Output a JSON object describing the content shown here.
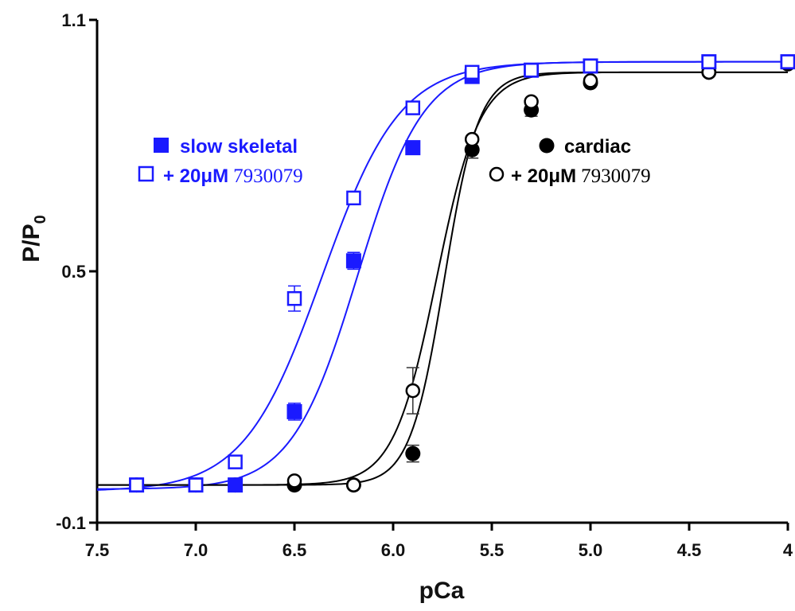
{
  "chart_data": {
    "type": "scatter",
    "xlabel": "pCa",
    "ylabel_main": "P/P",
    "ylabel_sub": "0",
    "xlim": [
      7.5,
      4.0
    ],
    "ylim": [
      -0.1,
      1.1
    ],
    "x_reversed": true,
    "x_ticks": [
      {
        "value": 7.5,
        "label": "7.5"
      },
      {
        "value": 7.0,
        "label": "7.0"
      },
      {
        "value": 6.5,
        "label": "6.5"
      },
      {
        "value": 6.0,
        "label": "6.0"
      },
      {
        "value": 5.5,
        "label": "5.5"
      },
      {
        "value": 5.0,
        "label": "5.0"
      },
      {
        "value": 4.5,
        "label": "4.5"
      },
      {
        "value": 4.0,
        "label": "4"
      }
    ],
    "y_ticks": [
      {
        "value": 1.1,
        "label": "1.1"
      },
      {
        "value": 0.5,
        "label": "0.5"
      },
      {
        "value": -0.1,
        "label": "-0.1"
      }
    ],
    "grid": false,
    "series": [
      {
        "name": "slow skeletal",
        "marker": "filled-square",
        "color": "#1a1aff",
        "x": [
          7.3,
          7.0,
          6.8,
          6.5,
          6.2,
          5.9,
          5.6,
          5.3,
          5.0,
          4.4,
          4.0
        ],
        "y": [
          -0.01,
          -0.01,
          -0.01,
          0.165,
          0.525,
          0.795,
          0.965,
          0.98,
          0.99,
          1.0,
          1.0
        ],
        "err": [
          0,
          0,
          0,
          0.02,
          0.02,
          0,
          0.01,
          0,
          0,
          0,
          0
        ],
        "fit": {
          "pCa50": 6.18,
          "nH": 2.6,
          "min": -0.02,
          "max": 1.0
        }
      },
      {
        "name_main": "+ 20",
        "name_unit": "μM",
        "name_compound": "7930079",
        "group": "skeletal",
        "marker": "open-square",
        "color": "#1a1aff",
        "x": [
          7.3,
          7.0,
          6.8,
          6.5,
          6.2,
          5.9,
          5.6,
          5.3,
          5.0,
          4.4,
          4.0
        ],
        "y": [
          -0.01,
          -0.01,
          0.045,
          0.435,
          0.675,
          0.89,
          0.975,
          0.98,
          0.99,
          1.0,
          1.0
        ],
        "err": [
          0,
          0,
          0,
          0.03,
          0,
          0,
          0,
          0,
          0,
          0,
          0
        ],
        "fit": {
          "pCa50": 6.36,
          "nH": 2.2,
          "min": -0.025,
          "max": 1.0
        }
      },
      {
        "name": "cardiac",
        "marker": "filled-circle",
        "color": "#000000",
        "x": [
          7.3,
          7.0,
          6.8,
          6.5,
          6.2,
          5.9,
          5.6,
          5.3,
          5.0,
          4.4,
          4.0
        ],
        "y": [
          -0.01,
          -0.01,
          -0.01,
          -0.01,
          -0.01,
          0.065,
          0.79,
          0.885,
          0.95,
          0.975,
          0.995
        ],
        "err": [
          0,
          0,
          0,
          0,
          0,
          0.02,
          0.02,
          0.015,
          0,
          0,
          0
        ],
        "fit": {
          "pCa50": 5.74,
          "nH": 5.0,
          "min": -0.01,
          "max": 0.975
        }
      },
      {
        "name_main": "+ 20",
        "name_unit": "μM",
        "name_compound": "7930079",
        "group": "cardiac",
        "marker": "open-circle",
        "color": "#000000",
        "x": [
          7.3,
          7.0,
          6.8,
          6.5,
          6.2,
          5.9,
          5.6,
          5.3,
          5.0,
          4.4,
          4.0
        ],
        "y": [
          -0.01,
          -0.01,
          -0.01,
          0.0,
          -0.01,
          0.215,
          0.815,
          0.905,
          0.955,
          0.975,
          0.995
        ],
        "err": [
          0,
          0,
          0,
          0,
          0,
          0.055,
          0,
          0,
          0,
          0,
          0
        ],
        "fit": {
          "pCa50": 5.78,
          "nH": 4.0,
          "min": -0.01,
          "max": 0.975
        }
      }
    ],
    "legend": {
      "placement": "left and center, inside plot",
      "skeletal_color": "#1a1aff",
      "cardiac_color": "#000000"
    }
  }
}
